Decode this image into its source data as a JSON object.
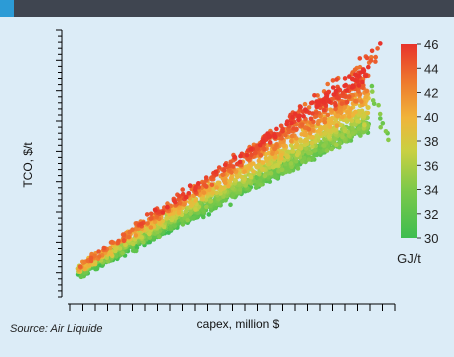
{
  "chart_data": {
    "type": "scatter",
    "xlabel": "capex, million $",
    "ylabel": "TCO, $/t",
    "x_tick_labels_shown": false,
    "y_tick_labels_shown": false,
    "colorbar": {
      "label": "GJ/t",
      "ticks": [
        30,
        32,
        34,
        36,
        38,
        40,
        42,
        44,
        46
      ],
      "range": [
        30,
        46
      ],
      "colors": [
        "#3dbd50",
        "#7dc94a",
        "#c9d042",
        "#f0b43a",
        "#ee7b2e",
        "#e8332b"
      ]
    },
    "point_cloud": {
      "description": "Dense cloud of several thousand points rising from lower-left to upper-right; upper boundary points have highest energy (GJ/t ~44-46), lower boundary lowest (~30-32).",
      "x_range_fraction": [
        0.03,
        0.98
      ],
      "y_range_fraction": [
        0.04,
        0.96
      ],
      "energy_range": [
        30,
        46
      ],
      "point_count_approx": 2600
    }
  },
  "source_note": "Source: Air Liquide"
}
